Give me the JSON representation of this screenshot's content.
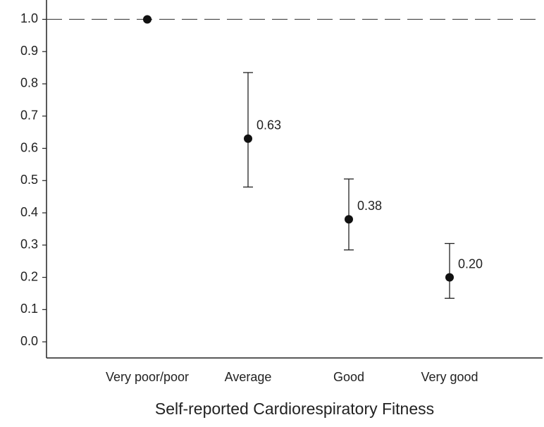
{
  "chart_data": {
    "type": "errorbar",
    "x_label": "Self-reported Cardiorespiratory Fitness",
    "categories": [
      "Very poor/poor",
      "Average",
      "Good",
      "Very good"
    ],
    "values": [
      1.0,
      0.63,
      0.38,
      0.2
    ],
    "value_labels": [
      null,
      "0.63",
      "0.38",
      "0.20"
    ],
    "lower": [
      null,
      0.48,
      0.285,
      0.135
    ],
    "upper": [
      null,
      0.835,
      0.505,
      0.305
    ],
    "color": "#111111",
    "reference_line": 1.0,
    "ylim": [
      -0.05,
      1.06
    ],
    "yticks": [
      {
        "value": 0.0,
        "label": "0.0"
      },
      0.1,
      0.2,
      0.3,
      0.4,
      0.5,
      0.6,
      0.7,
      0.8,
      0.9,
      {
        "value": 1.0,
        "label": "1.0"
      }
    ]
  }
}
